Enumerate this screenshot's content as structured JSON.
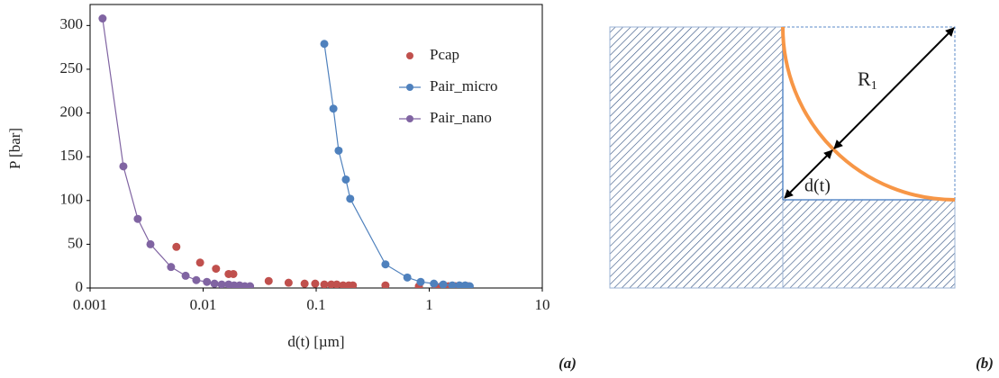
{
  "chart_data": {
    "type": "scatter",
    "x_label": "d(t) [µm]",
    "y_label": "P [bar]",
    "xlim": [
      0.001,
      10
    ],
    "xscale": "log",
    "xticks": [
      0.001,
      0.01,
      0.1,
      1,
      10
    ],
    "ylim": [
      0,
      324
    ],
    "yticks": [
      0,
      50,
      100,
      150,
      200,
      250,
      300
    ],
    "legend": "upper right",
    "series": [
      {
        "name": "Pcap",
        "color": "#c0504d",
        "line": false,
        "x": [
          0.0058,
          0.0094,
          0.013,
          0.0168,
          0.0185,
          0.038,
          0.057,
          0.079,
          0.098,
          0.118,
          0.136,
          0.152,
          0.173,
          0.194,
          0.211,
          0.41,
          0.81,
          1.14,
          1.28,
          1.48,
          1.7,
          1.9,
          2.2
        ],
        "values": [
          47,
          29,
          22,
          16,
          16,
          8,
          6,
          5,
          5,
          4,
          4,
          4,
          3,
          3,
          3,
          3,
          2,
          2,
          2,
          2,
          2,
          2,
          2
        ]
      },
      {
        "name": "Pair_micro",
        "color": "#4f81bd",
        "line": true,
        "x": [
          0.118,
          0.142,
          0.158,
          0.183,
          0.2,
          0.41,
          0.64,
          0.84,
          1.1,
          1.33,
          1.6,
          1.85,
          2.08,
          2.28
        ],
        "values": [
          279,
          205,
          157,
          124,
          102,
          27,
          12,
          7,
          5,
          4,
          3,
          3,
          3,
          2
        ]
      },
      {
        "name": "Pair_nano",
        "color": "#8064a2",
        "line": true,
        "x": [
          0.00129,
          0.00197,
          0.00264,
          0.00342,
          0.0052,
          0.007,
          0.0087,
          0.0108,
          0.0126,
          0.0146,
          0.0168,
          0.0188,
          0.021,
          0.0234,
          0.026
        ],
        "values": [
          308,
          139,
          79,
          50,
          24,
          14,
          9,
          7,
          5,
          4,
          4,
          3,
          3,
          2,
          2
        ]
      }
    ]
  },
  "panel_a_label": "(a)",
  "diagram": {
    "radius_label": {
      "main": "R",
      "sub": "1"
    },
    "distance_label": "d(t)",
    "panel_label": "(b)"
  }
}
